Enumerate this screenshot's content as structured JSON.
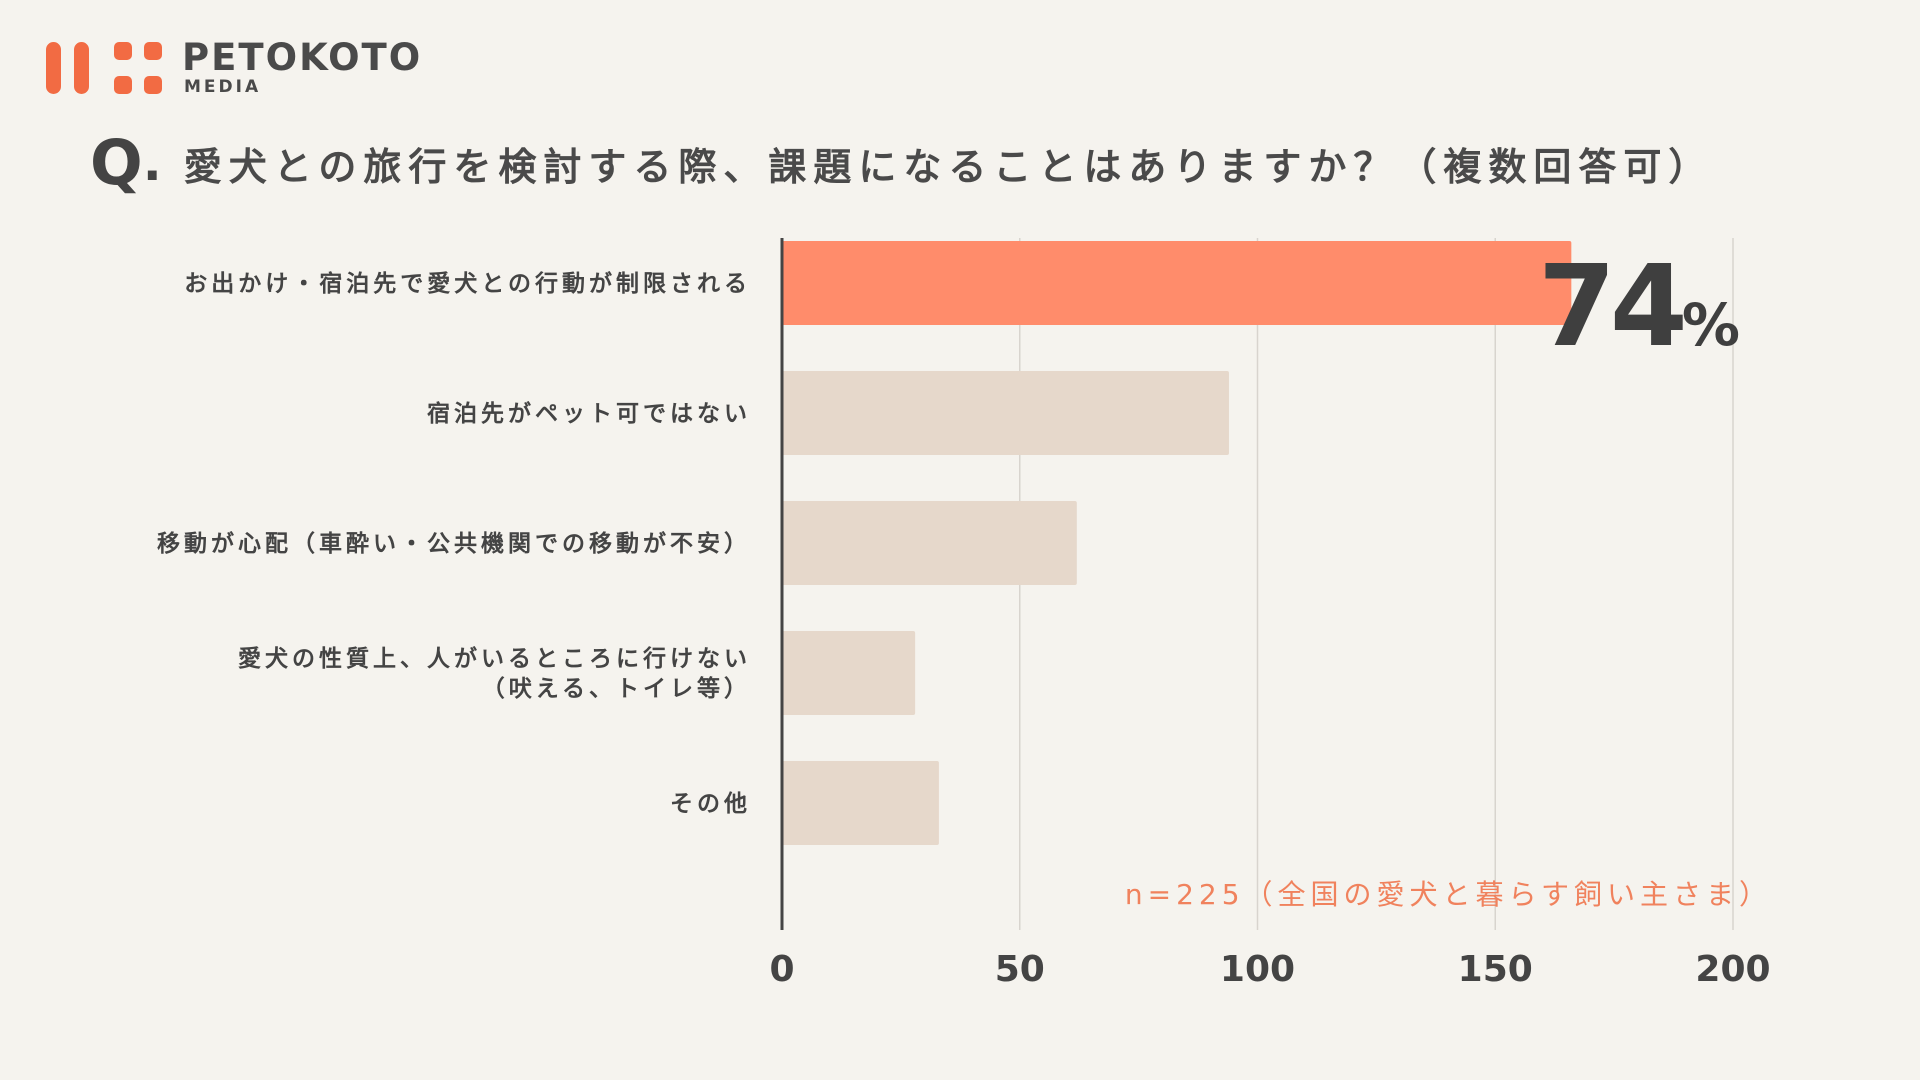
{
  "brand": {
    "name": "PETOKOTO",
    "sub": "MEDIA",
    "color": "#f26b43"
  },
  "question": {
    "mark": "Q",
    "dot": ".",
    "text": "愛犬との旅行を検討する際、課題になることはありますか？（複数回答可）"
  },
  "chart_data": {
    "type": "bar",
    "orientation": "horizontal",
    "categories": [
      [
        "お出かけ・宿泊先で愛犬との行動が制限される"
      ],
      [
        "宿泊先がペット可ではない"
      ],
      [
        "移動が心配（車酔い・公共機関での移動が不安）"
      ],
      [
        "愛犬の性質上、人がいるところに行けない",
        "（吠える、トイレ等）"
      ],
      [
        "その他"
      ]
    ],
    "values": [
      166,
      94,
      62,
      28,
      33
    ],
    "xlim": [
      0,
      200
    ],
    "xticks": [
      "0",
      "50",
      "100",
      "150",
      "200"
    ],
    "grid": true,
    "highlight": {
      "index": 0,
      "value": "74",
      "unit": "%"
    },
    "colors": {
      "highlight": "#ff8c6b",
      "bar": "#e6d8cb",
      "grid": "#d8d4ce",
      "axis": "#444444"
    },
    "note": "n=225（全国の愛犬と暮らす飼い主さま）"
  }
}
